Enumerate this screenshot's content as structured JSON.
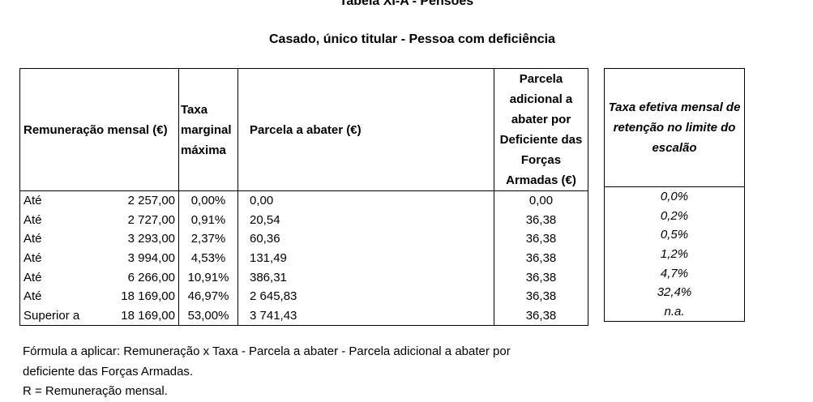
{
  "title": "Tabela XI-A - Pensões",
  "subtitle": "Casado, único titular - Pessoa com deficiência",
  "table": {
    "headers": {
      "remuneracao": "Remuneração mensal (€)",
      "taxa": "Taxa marginal máxima",
      "parcela": "Parcela a abater (€)",
      "adicional": "Parcela adicional a abater por Deficiente das Forças Armadas (€)",
      "efetiva": "Taxa efetiva mensal de retenção no limite do escalão"
    },
    "rows": [
      {
        "label": "Até",
        "amount": "2 257,00",
        "taxa": "0,00%",
        "parcela": "0,00",
        "adicional": "0,00",
        "efetiva": "0,0%"
      },
      {
        "label": "Até",
        "amount": "2 727,00",
        "taxa": "0,91%",
        "parcela": "20,54",
        "adicional": "36,38",
        "efetiva": "0,2%"
      },
      {
        "label": "Até",
        "amount": "3 293,00",
        "taxa": "2,37%",
        "parcela": "60,36",
        "adicional": "36,38",
        "efetiva": "0,5%"
      },
      {
        "label": "Até",
        "amount": "3 994,00",
        "taxa": "4,53%",
        "parcela": "131,49",
        "adicional": "36,38",
        "efetiva": "1,2%"
      },
      {
        "label": "Até",
        "amount": "6 266,00",
        "taxa": "10,91%",
        "parcela": "386,31",
        "adicional": "36,38",
        "efetiva": "4,7%"
      },
      {
        "label": "Até",
        "amount": "18 169,00",
        "taxa": "46,97%",
        "parcela": "2 645,83",
        "adicional": "36,38",
        "efetiva": "32,4%"
      },
      {
        "label": "Superior a",
        "amount": "18 169,00",
        "taxa": "53,00%",
        "parcela": "3 741,43",
        "adicional": "36,38",
        "efetiva": "n.a."
      }
    ]
  },
  "notes": {
    "line1": "Fórmula a aplicar: Remuneração x Taxa - Parcela a abater - Parcela adicional a abater por",
    "line2": "deficiente das Forças Armadas.",
    "line3": "R = Remuneração mensal."
  }
}
